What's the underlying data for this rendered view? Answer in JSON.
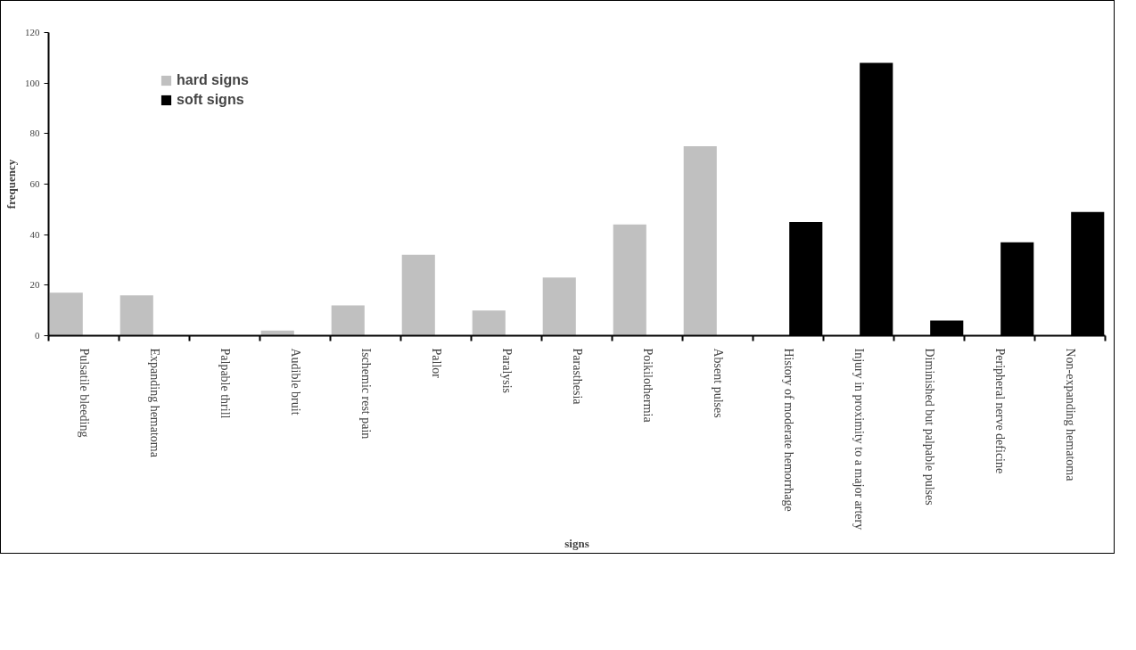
{
  "chart_data": {
    "type": "bar",
    "xlabel": "signs",
    "ylabel": "frequency",
    "categories": [
      "Pulsatile bleeding",
      "Expanding hematoma",
      "Palpable thrill",
      "Audible bruit",
      "Ischemic rest pain",
      "Pallor",
      "Paralysis",
      "Parasthesia",
      "Poikilothermia",
      "Absent pulses",
      "History of moderate hemorrhage",
      "Injury in proximity to a major artery",
      "Diminished but palpable pulses",
      "Peripheral nerve deficine",
      "Non-expanding hematoma"
    ],
    "series": [
      {
        "name": "hard signs",
        "color": "#c0c0c0",
        "values": [
          17,
          16,
          0,
          2,
          12,
          32,
          10,
          23,
          44,
          75,
          null,
          null,
          null,
          null,
          null
        ]
      },
      {
        "name": "soft signs",
        "color": "#000000",
        "values": [
          null,
          null,
          null,
          null,
          null,
          null,
          null,
          null,
          null,
          null,
          45,
          108,
          6,
          37,
          49
        ]
      }
    ],
    "ylim": [
      0,
      120
    ],
    "yticks": [
      0,
      20,
      40,
      60,
      80,
      100,
      120
    ],
    "grid": false,
    "legend": "top left"
  }
}
